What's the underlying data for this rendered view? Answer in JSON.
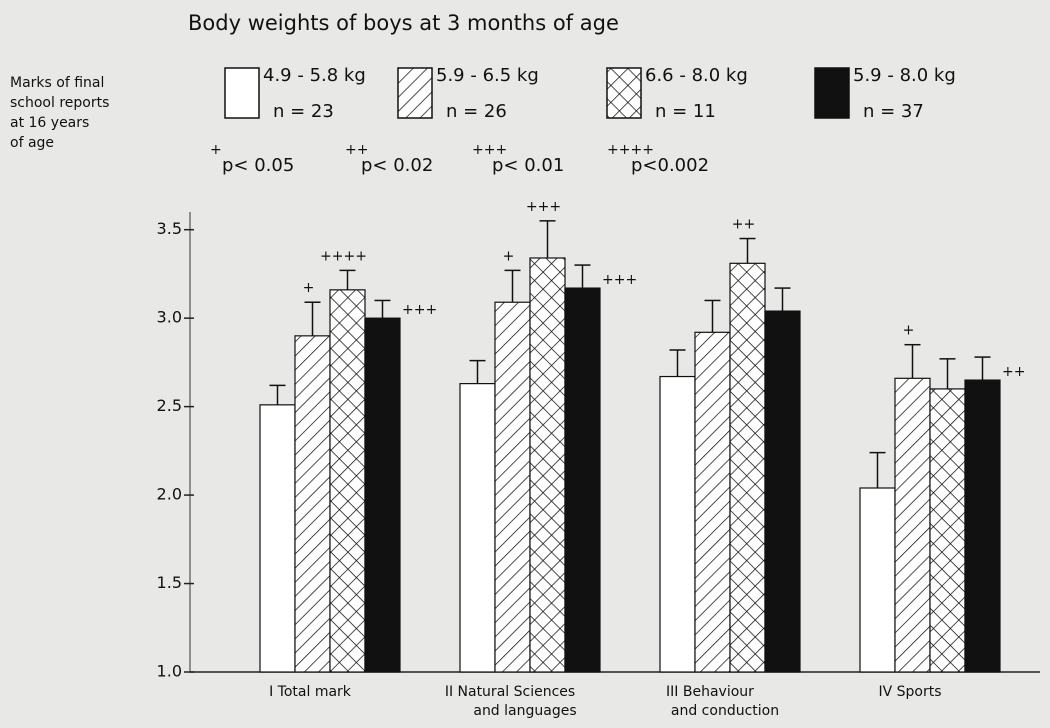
{
  "chart_data": {
    "type": "bar",
    "title": "Body weights of boys at 3 months of age",
    "ylabel": [
      "Marks of final",
      "school reports",
      "at 16 years",
      "of age"
    ],
    "categories": [
      [
        "I Total mark"
      ],
      [
        "II Natural Sciences",
        "and languages"
      ],
      [
        "III Behaviour",
        "and conduction"
      ],
      [
        "IV Sports"
      ]
    ],
    "series": [
      {
        "name": "4.9 - 5.8 kg",
        "n_label": "n = 23",
        "color": "#ffffff",
        "pattern": "none",
        "values": [
          2.51,
          2.63,
          2.67,
          2.04
        ],
        "errors": [
          0.11,
          0.13,
          0.15,
          0.2
        ],
        "markers": [
          null,
          null,
          null,
          null
        ]
      },
      {
        "name": "5.9 - 6.5 kg",
        "n_label": "n = 26",
        "color": "#ffffff",
        "pattern": "hatch",
        "values": [
          2.9,
          3.09,
          2.92,
          2.66
        ],
        "errors": [
          0.19,
          0.18,
          0.18,
          0.19
        ],
        "markers": [
          "+",
          "+",
          null,
          "+"
        ]
      },
      {
        "name": "6.6 - 8.0 kg",
        "n_label": "n = 11",
        "color": "#ffffff",
        "pattern": "crosshatch",
        "values": [
          3.16,
          3.34,
          3.31,
          2.6
        ],
        "errors": [
          0.11,
          0.21,
          0.14,
          0.17
        ],
        "markers": [
          "++++",
          "+++",
          "++",
          null
        ]
      },
      {
        "name": "5.9 - 8.0 kg",
        "n_label": "n = 37",
        "color": "#111111",
        "pattern": "solid",
        "values": [
          3.0,
          3.17,
          3.04,
          2.65
        ],
        "errors": [
          0.1,
          0.13,
          0.13,
          0.13
        ],
        "markers": [
          "+++",
          "+++",
          null,
          "++"
        ]
      }
    ],
    "significance": [
      {
        "symbol": "+",
        "label": "p< 0.05"
      },
      {
        "symbol": "++",
        "label": "p< 0.02"
      },
      {
        "symbol": "+++",
        "label": "p< 0.01"
      },
      {
        "symbol": "++++",
        "label": "p<0.002"
      }
    ],
    "ylim": [
      1,
      3.6
    ],
    "yticks": [
      {
        "value": 1,
        "label": "1.0"
      },
      1.5,
      {
        "value": 2,
        "label": "2.0"
      },
      2.5,
      {
        "value": 3,
        "label": "3.0"
      },
      3.5
    ],
    "grid": false
  }
}
